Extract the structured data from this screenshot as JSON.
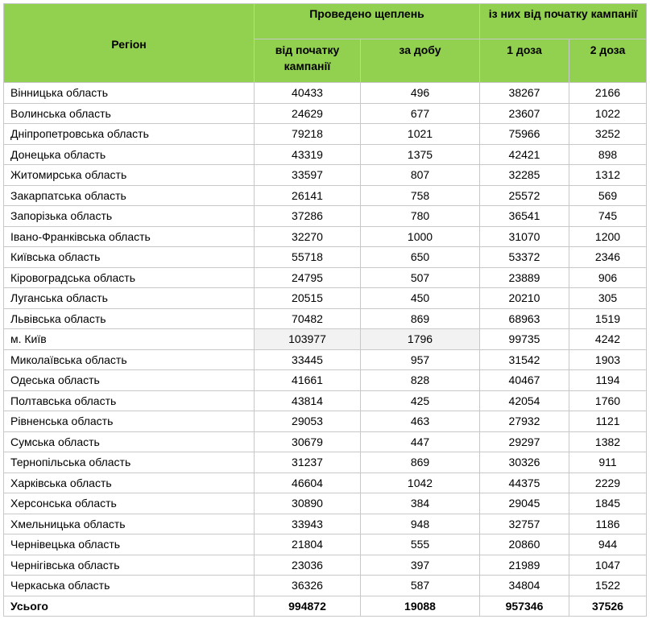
{
  "header": {
    "region": "Регіон",
    "group1": "Проведено щеплень",
    "group2": "із них від початку кампанії",
    "col_since_start": "від початку кампанії",
    "col_per_day": "за добу",
    "col_dose1": "1 доза",
    "col_dose2": "2 доза"
  },
  "header_color": "#92d050",
  "rows": [
    {
      "region": "Вінницька область",
      "since_start": "40433",
      "per_day": "496",
      "dose1": "38267",
      "dose2": "2166"
    },
    {
      "region": "Волинська область",
      "since_start": "24629",
      "per_day": "677",
      "dose1": "23607",
      "dose2": "1022"
    },
    {
      "region": "Дніпропетровська область",
      "since_start": "79218",
      "per_day": "1021",
      "dose1": "75966",
      "dose2": "3252"
    },
    {
      "region": "Донецька область",
      "since_start": "43319",
      "per_day": "1375",
      "dose1": "42421",
      "dose2": "898"
    },
    {
      "region": "Житомирська область",
      "since_start": "33597",
      "per_day": "807",
      "dose1": "32285",
      "dose2": "1312"
    },
    {
      "region": "Закарпатська область",
      "since_start": "26141",
      "per_day": "758",
      "dose1": "25572",
      "dose2": "569"
    },
    {
      "region": "Запорізька область",
      "since_start": "37286",
      "per_day": "780",
      "dose1": "36541",
      "dose2": "745"
    },
    {
      "region": "Івано-Франківська область",
      "since_start": "32270",
      "per_day": "1000",
      "dose1": "31070",
      "dose2": "1200"
    },
    {
      "region": "Київська область",
      "since_start": "55718",
      "per_day": "650",
      "dose1": "53372",
      "dose2": "2346"
    },
    {
      "region": "Кіровоградська область",
      "since_start": "24795",
      "per_day": "507",
      "dose1": "23889",
      "dose2": "906"
    },
    {
      "region": "Луганська область",
      "since_start": "20515",
      "per_day": "450",
      "dose1": "20210",
      "dose2": "305"
    },
    {
      "region": "Львівська область",
      "since_start": "70482",
      "per_day": "869",
      "dose1": "68963",
      "dose2": "1519"
    },
    {
      "region": "м. Київ",
      "since_start": "103977",
      "per_day": "1796",
      "dose1": "99735",
      "dose2": "4242",
      "highlight": true
    },
    {
      "region": "Миколаївська область",
      "since_start": "33445",
      "per_day": "957",
      "dose1": "31542",
      "dose2": "1903"
    },
    {
      "region": "Одеська область",
      "since_start": "41661",
      "per_day": "828",
      "dose1": "40467",
      "dose2": "1194"
    },
    {
      "region": "Полтавська область",
      "since_start": "43814",
      "per_day": "425",
      "dose1": "42054",
      "dose2": "1760"
    },
    {
      "region": "Рівненська область",
      "since_start": "29053",
      "per_day": "463",
      "dose1": "27932",
      "dose2": "1121"
    },
    {
      "region": "Сумська область",
      "since_start": "30679",
      "per_day": "447",
      "dose1": "29297",
      "dose2": "1382"
    },
    {
      "region": "Тернопільська область",
      "since_start": "31237",
      "per_day": "869",
      "dose1": "30326",
      "dose2": "911"
    },
    {
      "region": "Харківська область",
      "since_start": "46604",
      "per_day": "1042",
      "dose1": "44375",
      "dose2": "2229"
    },
    {
      "region": "Херсонська область",
      "since_start": "30890",
      "per_day": "384",
      "dose1": "29045",
      "dose2": "1845"
    },
    {
      "region": "Хмельницька область",
      "since_start": "33943",
      "per_day": "948",
      "dose1": "32757",
      "dose2": "1186"
    },
    {
      "region": "Чернівецька область",
      "since_start": "21804",
      "per_day": "555",
      "dose1": "20860",
      "dose2": "944"
    },
    {
      "region": "Чернігівська область",
      "since_start": "23036",
      "per_day": "397",
      "dose1": "21989",
      "dose2": "1047"
    },
    {
      "region": "Черкаська область",
      "since_start": "36326",
      "per_day": "587",
      "dose1": "34804",
      "dose2": "1522"
    }
  ],
  "total": {
    "region": "Усього",
    "since_start": "994872",
    "per_day": "19088",
    "dose1": "957346",
    "dose2": "37526"
  }
}
